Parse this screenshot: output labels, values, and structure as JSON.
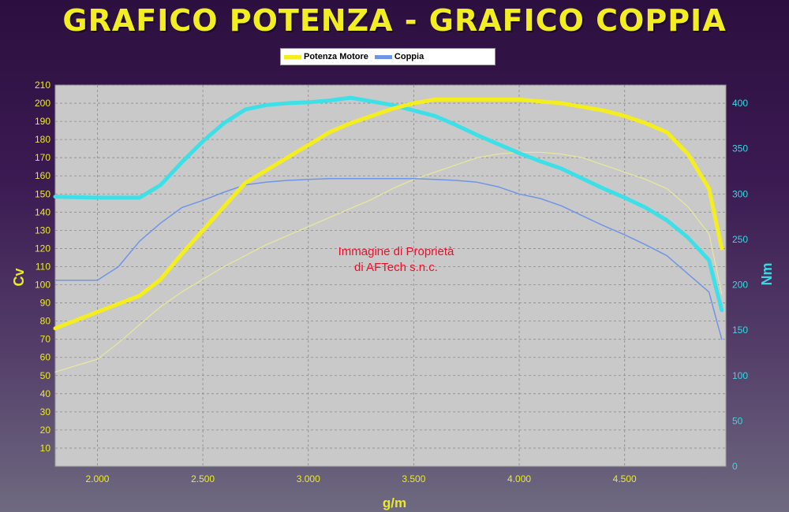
{
  "title": "GRAFICO POTENZA - GRAFICO COPPIA",
  "legend": [
    {
      "label": "Potenza Motore",
      "color": "#f4ee1f"
    },
    {
      "label": "Coppia",
      "color": "#6f95e6"
    }
  ],
  "watermark": [
    "Immagine di Proprietà",
    "di AFTech s.n.c."
  ],
  "colors": {
    "plot_bg": "#c9c9c9",
    "grid": "#8a8a8a",
    "left_axis": "#eaea2a",
    "right_axis": "#36d8e2",
    "watermark": "#e8102a"
  },
  "chart_data": {
    "type": "line",
    "xlabel": "g/m",
    "ylabel": "Cv",
    "y2label": "Nm",
    "xlim": [
      1800,
      4980
    ],
    "ylim": [
      0,
      210
    ],
    "y2lim": [
      0,
      420
    ],
    "x_ticks": [
      2000,
      2500,
      3000,
      3500,
      4000,
      4500
    ],
    "x_tick_labels": [
      "2.000",
      "2.500",
      "3.000",
      "3.500",
      "4.000",
      "4.500"
    ],
    "y_ticks": [
      10,
      20,
      30,
      40,
      50,
      60,
      70,
      80,
      90,
      100,
      110,
      120,
      130,
      140,
      150,
      160,
      170,
      180,
      190,
      200,
      210
    ],
    "y2_ticks": [
      0,
      50,
      100,
      150,
      200,
      250,
      300,
      350,
      400
    ],
    "grid": true,
    "legend_position": "top-center",
    "series": [
      {
        "name": "Potenza Motore",
        "axis": "left",
        "color": "#f4ee1f",
        "width": 5,
        "x": [
          1800,
          2000,
          2200,
          2300,
          2400,
          2500,
          2600,
          2700,
          2800,
          2900,
          3000,
          3100,
          3200,
          3300,
          3400,
          3500,
          3600,
          3700,
          3800,
          3900,
          4000,
          4100,
          4200,
          4300,
          4400,
          4500,
          4600,
          4700,
          4800,
          4900,
          4960
        ],
        "y": [
          76,
          85,
          94,
          103,
          117,
          130,
          143,
          156,
          163,
          170,
          177,
          184,
          189,
          193,
          197,
          200,
          202,
          202,
          202,
          202,
          202,
          201,
          200,
          198,
          196,
          193,
          189,
          184,
          172,
          153,
          120
        ]
      },
      {
        "name": "Coppia",
        "axis": "right",
        "color": "#6f95e6",
        "width": 1.5,
        "x": [
          1800,
          2000,
          2100,
          2200,
          2300,
          2400,
          2500,
          2600,
          2700,
          2800,
          2900,
          3000,
          3100,
          3200,
          3300,
          3400,
          3500,
          3600,
          3700,
          3800,
          3900,
          4000,
          4100,
          4200,
          4300,
          4400,
          4500,
          4600,
          4700,
          4800,
          4900,
          4960
        ],
        "y": [
          205,
          205,
          220,
          248,
          268,
          285,
          293,
          302,
          310,
          313,
          315,
          316,
          317,
          317,
          317,
          317,
          317,
          316,
          315,
          313,
          308,
          300,
          295,
          287,
          276,
          265,
          255,
          244,
          232,
          212,
          192,
          140
        ]
      },
      {
        "axis": "right",
        "color": "#3ee0e8",
        "width": 5,
        "x": [
          1800,
          2000,
          2200,
          2300,
          2400,
          2500,
          2600,
          2700,
          2800,
          2900,
          3000,
          3100,
          3200,
          3300,
          3400,
          3500,
          3600,
          3700,
          3800,
          3900,
          4000,
          4100,
          4200,
          4300,
          4400,
          4500,
          4600,
          4700,
          4800,
          4900,
          4960
        ],
        "y": [
          297,
          296,
          296,
          310,
          335,
          358,
          378,
          393,
          398,
          400,
          401,
          403,
          406,
          402,
          398,
          392,
          386,
          376,
          365,
          355,
          345,
          336,
          328,
          317,
          306,
          296,
          285,
          271,
          252,
          227,
          172
        ]
      },
      {
        "axis": "left",
        "color": "#e8e89a",
        "width": 1.2,
        "x": [
          1800,
          2000,
          2100,
          2200,
          2300,
          2400,
          2500,
          2600,
          2700,
          2800,
          2900,
          3000,
          3100,
          3200,
          3300,
          3400,
          3500,
          3600,
          3700,
          3800,
          3900,
          4000,
          4100,
          4200,
          4300,
          4400,
          4500,
          4600,
          4700,
          4800,
          4900,
          4960
        ],
        "y": [
          52,
          59,
          68,
          78,
          88,
          96,
          103,
          110,
          116,
          122,
          127,
          132,
          137,
          142,
          147,
          153,
          158,
          162,
          166,
          170,
          172,
          173,
          173,
          172,
          170,
          166,
          162,
          158,
          153,
          143,
          128,
          95
        ]
      }
    ]
  }
}
